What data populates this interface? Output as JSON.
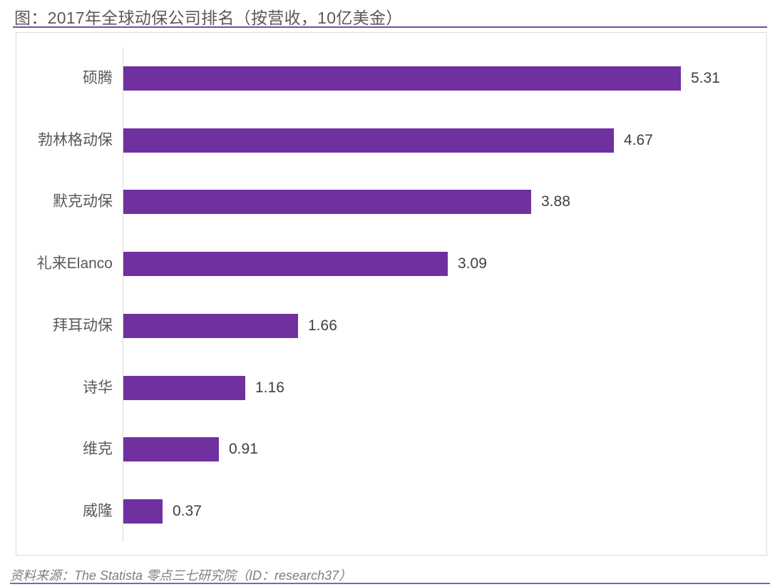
{
  "header": {
    "title": "图：2017年全球动保公司排名（按营收，10亿美金）"
  },
  "footer": {
    "source": "资料来源：The Statista 零点三七研究院（ID：research37）"
  },
  "colors": {
    "bar": "#7030A0",
    "rule": "#7C4AA8",
    "text": "#595959"
  },
  "chart_data": {
    "type": "bar",
    "orientation": "horizontal",
    "title": "2017年全球动保公司排名（按营收，10亿美金）",
    "xlabel": "",
    "ylabel": "",
    "unit": "10亿美金",
    "categories": [
      "硕腾",
      "勃林格动保",
      "默克动保",
      "礼来Elanco",
      "拜耳动保",
      "诗华",
      "维克",
      "威隆"
    ],
    "values": [
      5.31,
      4.67,
      3.88,
      3.09,
      1.66,
      1.16,
      0.91,
      0.37
    ],
    "labels": [
      "5.31",
      "4.67",
      "3.88",
      "3.09",
      "1.66",
      "1.16",
      "0.91",
      "0.37"
    ],
    "xlim": [
      0,
      6
    ],
    "grid": false,
    "legend": null,
    "data_labels": true
  }
}
